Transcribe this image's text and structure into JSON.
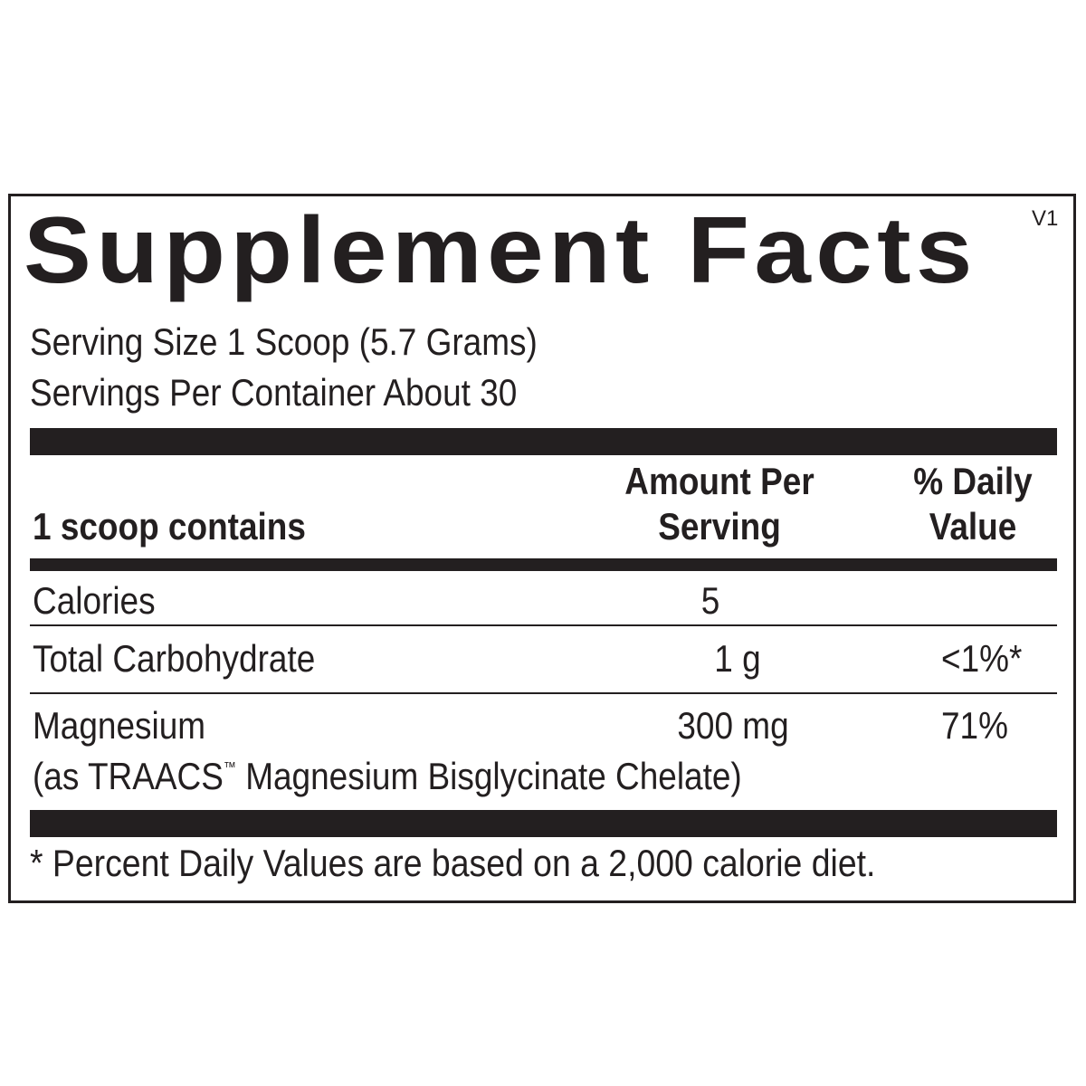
{
  "title": "Supplement Facts",
  "version": "V1",
  "serving_size": "Serving Size 1 Scoop (5.7 Grams)",
  "servings_per_container": "Servings Per Container About 30",
  "header": {
    "contains": "1 scoop contains",
    "amount_1": "Amount Per",
    "amount_2": "Serving",
    "dv_1": "% Daily",
    "dv_2": "Value"
  },
  "rows": [
    {
      "name": "Calories",
      "amount": "5",
      "dv": ""
    },
    {
      "name": "Total Carbohydrate",
      "amount": "1 g",
      "dv": "<1%*"
    },
    {
      "name": "Magnesium",
      "amount": "300 mg",
      "dv": "71%",
      "sub_pre": "(as TRAACS",
      "sub_tm": "™",
      "sub_post": " Magnesium Bisglycinate Chelate)"
    }
  ],
  "footnote": "* Percent Daily Values are based on a 2,000 calorie diet."
}
